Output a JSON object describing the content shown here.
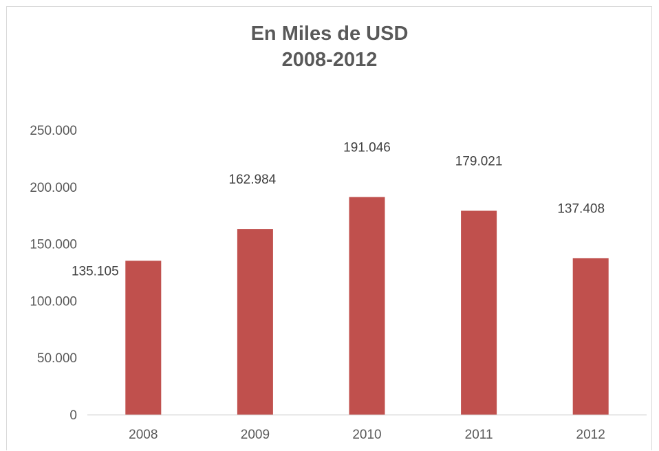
{
  "chart_data": {
    "type": "bar",
    "title": [
      "En Miles de USD",
      "2008-2012"
    ],
    "categories": [
      "2008",
      "2009",
      "2010",
      "2011",
      "2012"
    ],
    "values": [
      135105,
      162984,
      191046,
      179021,
      137408
    ],
    "data_labels": [
      "135.105",
      "162.984",
      "191.046",
      "179.021",
      "137.408"
    ],
    "y_ticks": [
      0,
      50000,
      100000,
      150000,
      200000,
      250000
    ],
    "y_tick_labels": [
      "0",
      "50.000",
      "100.000",
      "150.000",
      "200.000",
      "250.000"
    ],
    "ylim": [
      0,
      250000
    ],
    "grid": false,
    "legend": "none",
    "bar_color": "#c0504d",
    "axis_color": "#d9d9d9",
    "text_color": "#595959"
  }
}
